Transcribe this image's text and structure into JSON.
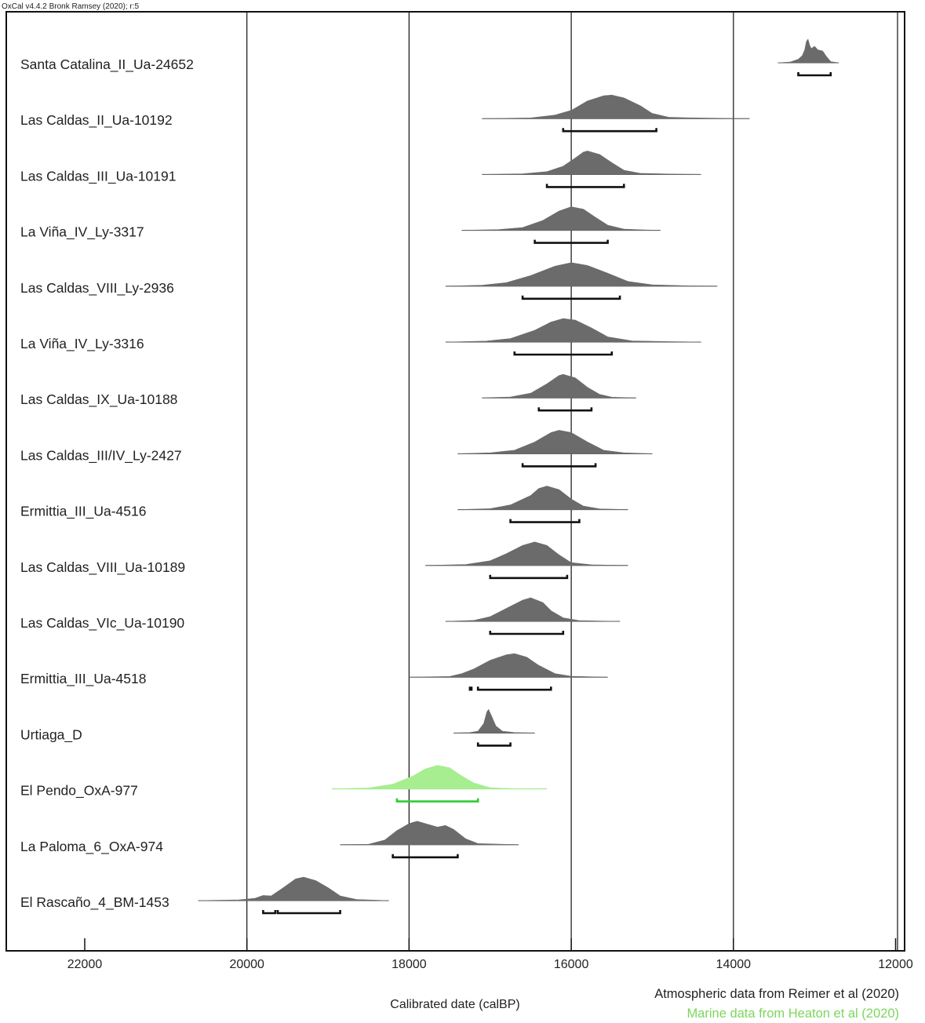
{
  "chart_data": {
    "type": "density-ridges",
    "credit": "OxCal v4.4.2 Bronk Ramsey (2020); r:5",
    "xlabel": "Calibrated date (calBP)",
    "x_direction": "descending",
    "xlim": [
      23000,
      11900
    ],
    "x_ticks": [
      22000,
      20000,
      18000,
      16000,
      14000,
      12000
    ],
    "vertical_gridlines": [
      20000,
      18000,
      16000,
      14000
    ],
    "grid": true,
    "colors": {
      "atmospheric": "#6b6b6b",
      "marine": "#a6ee8f",
      "marine_line": "#2ecc2e",
      "marine_text": "#7bd65c"
    },
    "legend_notes": [
      {
        "text": "Atmospheric data from Reimer et al (2020)",
        "curve": "atmospheric"
      },
      {
        "text": "Marine data from Heaton et al (2020)",
        "curve": "marine"
      }
    ],
    "samples": [
      {
        "label": "Santa Catalina_II_Ua-24652",
        "curve": "atmospheric",
        "range": [
          13450,
          12700
        ],
        "density": [
          [
            13450,
            0
          ],
          [
            13300,
            0.03
          ],
          [
            13200,
            0.15
          ],
          [
            13150,
            0.3
          ],
          [
            13120,
            0.55
          ],
          [
            13100,
            0.9
          ],
          [
            13080,
            1.0
          ],
          [
            13060,
            0.75
          ],
          [
            13040,
            0.6
          ],
          [
            13000,
            0.7
          ],
          [
            12960,
            0.55
          ],
          [
            12900,
            0.5
          ],
          [
            12850,
            0.25
          ],
          [
            12800,
            0.05
          ],
          [
            12700,
            0
          ]
        ],
        "intervals": [
          [
            13200,
            12800
          ]
        ]
      },
      {
        "label": "Las Caldas_II_Ua-10192",
        "curve": "atmospheric",
        "range": [
          17100,
          13800
        ],
        "density": [
          [
            17100,
            0
          ],
          [
            16500,
            0.03
          ],
          [
            16200,
            0.15
          ],
          [
            16000,
            0.35
          ],
          [
            15800,
            0.75
          ],
          [
            15600,
            0.97
          ],
          [
            15500,
            1.0
          ],
          [
            15350,
            0.88
          ],
          [
            15150,
            0.55
          ],
          [
            15000,
            0.22
          ],
          [
            14800,
            0.06
          ],
          [
            14600,
            0.04
          ],
          [
            14300,
            0.02
          ],
          [
            13800,
            0
          ]
        ],
        "intervals": [
          [
            16100,
            14950
          ]
        ]
      },
      {
        "label": "Las Caldas_III_Ua-10191",
        "curve": "atmospheric",
        "range": [
          17100,
          14400
        ],
        "density": [
          [
            17100,
            0
          ],
          [
            16600,
            0.03
          ],
          [
            16300,
            0.12
          ],
          [
            16100,
            0.35
          ],
          [
            15950,
            0.7
          ],
          [
            15850,
            0.95
          ],
          [
            15800,
            1.0
          ],
          [
            15650,
            0.85
          ],
          [
            15500,
            0.5
          ],
          [
            15350,
            0.18
          ],
          [
            15150,
            0.05
          ],
          [
            14800,
            0.02
          ],
          [
            14400,
            0
          ]
        ],
        "intervals": [
          [
            16300,
            15350
          ]
        ]
      },
      {
        "label": "La Viña_IV_Ly-3317",
        "curve": "atmospheric",
        "range": [
          17350,
          14900
        ],
        "density": [
          [
            17350,
            0
          ],
          [
            16900,
            0.03
          ],
          [
            16600,
            0.12
          ],
          [
            16350,
            0.42
          ],
          [
            16150,
            0.82
          ],
          [
            16000,
            1.0
          ],
          [
            15850,
            0.9
          ],
          [
            15700,
            0.55
          ],
          [
            15550,
            0.22
          ],
          [
            15350,
            0.05
          ],
          [
            15100,
            0.02
          ],
          [
            14900,
            0
          ]
        ],
        "intervals": [
          [
            16450,
            15550
          ]
        ]
      },
      {
        "label": "Las Caldas_VIII_Ly-2936",
        "curve": "atmospheric",
        "range": [
          17550,
          14200
        ],
        "density": [
          [
            17550,
            0
          ],
          [
            17100,
            0.04
          ],
          [
            16800,
            0.15
          ],
          [
            16500,
            0.45
          ],
          [
            16200,
            0.85
          ],
          [
            16000,
            1.0
          ],
          [
            15800,
            0.88
          ],
          [
            15550,
            0.55
          ],
          [
            15300,
            0.2
          ],
          [
            15000,
            0.06
          ],
          [
            14600,
            0.02
          ],
          [
            14200,
            0
          ]
        ],
        "intervals": [
          [
            16600,
            15400
          ]
        ]
      },
      {
        "label": "La Viña_IV_Ly-3316",
        "curve": "atmospheric",
        "range": [
          17550,
          14400
        ],
        "density": [
          [
            17550,
            0
          ],
          [
            17050,
            0.04
          ],
          [
            16750,
            0.15
          ],
          [
            16450,
            0.5
          ],
          [
            16250,
            0.85
          ],
          [
            16100,
            1.0
          ],
          [
            15950,
            0.93
          ],
          [
            15750,
            0.6
          ],
          [
            15550,
            0.22
          ],
          [
            15250,
            0.05
          ],
          [
            14800,
            0.02
          ],
          [
            14400,
            0
          ]
        ],
        "intervals": [
          [
            16700,
            15500
          ]
        ]
      },
      {
        "label": "Las Caldas_IX_Ua-10188",
        "curve": "atmospheric",
        "range": [
          17100,
          15200
        ],
        "density": [
          [
            17100,
            0
          ],
          [
            16750,
            0.04
          ],
          [
            16500,
            0.2
          ],
          [
            16300,
            0.6
          ],
          [
            16150,
            0.95
          ],
          [
            16100,
            1.0
          ],
          [
            15950,
            0.85
          ],
          [
            15800,
            0.45
          ],
          [
            15650,
            0.15
          ],
          [
            15500,
            0.03
          ],
          [
            15200,
            0
          ]
        ],
        "intervals": [
          [
            16400,
            15750
          ]
        ]
      },
      {
        "label": "Las Caldas_III/IV_Ly-2427",
        "curve": "atmospheric",
        "range": [
          17400,
          15000
        ],
        "density": [
          [
            17400,
            0
          ],
          [
            17000,
            0.04
          ],
          [
            16700,
            0.15
          ],
          [
            16450,
            0.5
          ],
          [
            16250,
            0.9
          ],
          [
            16150,
            1.0
          ],
          [
            16000,
            0.9
          ],
          [
            15800,
            0.5
          ],
          [
            15600,
            0.15
          ],
          [
            15350,
            0.04
          ],
          [
            15000,
            0
          ]
        ],
        "intervals": [
          [
            16600,
            15700
          ]
        ]
      },
      {
        "label": "Ermittia_III_Ua-4516",
        "curve": "atmospheric",
        "range": [
          17400,
          15300
        ],
        "density": [
          [
            17400,
            0
          ],
          [
            17000,
            0.04
          ],
          [
            16750,
            0.2
          ],
          [
            16500,
            0.6
          ],
          [
            16400,
            0.9
          ],
          [
            16300,
            1.0
          ],
          [
            16150,
            0.85
          ],
          [
            16000,
            0.45
          ],
          [
            15850,
            0.15
          ],
          [
            15650,
            0.03
          ],
          [
            15300,
            0
          ]
        ],
        "intervals": [
          [
            16750,
            15900
          ]
        ]
      },
      {
        "label": "Las Caldas_VIII_Ua-10189",
        "curve": "atmospheric",
        "range": [
          17800,
          15300
        ],
        "density": [
          [
            17800,
            0
          ],
          [
            17300,
            0.04
          ],
          [
            17000,
            0.2
          ],
          [
            16800,
            0.5
          ],
          [
            16600,
            0.85
          ],
          [
            16450,
            1.0
          ],
          [
            16300,
            0.85
          ],
          [
            16150,
            0.45
          ],
          [
            16000,
            0.12
          ],
          [
            15750,
            0.03
          ],
          [
            15300,
            0
          ]
        ],
        "intervals": [
          [
            17000,
            16050
          ]
        ]
      },
      {
        "label": "Las Caldas_VIc_Ua-10190",
        "curve": "atmospheric",
        "range": [
          17550,
          15400
        ],
        "density": [
          [
            17550,
            0
          ],
          [
            17200,
            0.04
          ],
          [
            17000,
            0.2
          ],
          [
            16800,
            0.55
          ],
          [
            16600,
            0.9
          ],
          [
            16500,
            1.0
          ],
          [
            16350,
            0.8
          ],
          [
            16250,
            0.45
          ],
          [
            16100,
            0.15
          ],
          [
            15900,
            0.03
          ],
          [
            15400,
            0
          ]
        ],
        "intervals": [
          [
            17000,
            16100
          ]
        ]
      },
      {
        "label": "Ermittia_III_Ua-4518",
        "curve": "atmospheric",
        "range": [
          18000,
          15550
        ],
        "density": [
          [
            18000,
            0
          ],
          [
            17500,
            0.03
          ],
          [
            17350,
            0.15
          ],
          [
            17200,
            0.35
          ],
          [
            17000,
            0.72
          ],
          [
            16800,
            0.95
          ],
          [
            16700,
            1.0
          ],
          [
            16550,
            0.85
          ],
          [
            16400,
            0.5
          ],
          [
            16200,
            0.15
          ],
          [
            16000,
            0.04
          ],
          [
            15550,
            0
          ]
        ],
        "intervals": [
          [
            17250,
            17230
          ],
          [
            17150,
            16250
          ]
        ]
      },
      {
        "label": "Urtiaga_D",
        "curve": "atmospheric",
        "range": [
          17450,
          16450
        ],
        "density": [
          [
            17450,
            0
          ],
          [
            17250,
            0.02
          ],
          [
            17150,
            0.08
          ],
          [
            17080,
            0.4
          ],
          [
            17040,
            0.9
          ],
          [
            17020,
            1.0
          ],
          [
            16980,
            0.7
          ],
          [
            16930,
            0.3
          ],
          [
            16850,
            0.08
          ],
          [
            16700,
            0.02
          ],
          [
            16450,
            0
          ]
        ],
        "intervals": [
          [
            17150,
            16750
          ]
        ]
      },
      {
        "label": "El Pendo_OxA-977",
        "curve": "marine",
        "range": [
          18950,
          16300
        ],
        "density": [
          [
            18950,
            0
          ],
          [
            18500,
            0.04
          ],
          [
            18200,
            0.2
          ],
          [
            17950,
            0.55
          ],
          [
            17800,
            0.85
          ],
          [
            17650,
            1.0
          ],
          [
            17500,
            0.9
          ],
          [
            17350,
            0.55
          ],
          [
            17200,
            0.25
          ],
          [
            17000,
            0.05
          ],
          [
            16700,
            0.01
          ],
          [
            16300,
            0
          ]
        ],
        "intervals": [
          [
            18150,
            17150
          ]
        ]
      },
      {
        "label": "La Paloma_6_OxA-974",
        "curve": "atmospheric",
        "range": [
          18850,
          16650
        ],
        "density": [
          [
            18850,
            0
          ],
          [
            18500,
            0.02
          ],
          [
            18300,
            0.2
          ],
          [
            18150,
            0.6
          ],
          [
            18000,
            0.9
          ],
          [
            17900,
            1.0
          ],
          [
            17750,
            0.85
          ],
          [
            17650,
            0.75
          ],
          [
            17550,
            0.82
          ],
          [
            17450,
            0.65
          ],
          [
            17300,
            0.25
          ],
          [
            17150,
            0.05
          ],
          [
            16650,
            0
          ]
        ],
        "intervals": [
          [
            18200,
            17400
          ]
        ]
      },
      {
        "label": "El Rascaño_4_BM-1453",
        "curve": "atmospheric",
        "range": [
          20600,
          18250
        ],
        "density": [
          [
            20600,
            0
          ],
          [
            20100,
            0.03
          ],
          [
            19900,
            0.1
          ],
          [
            19800,
            0.22
          ],
          [
            19700,
            0.2
          ],
          [
            19550,
            0.55
          ],
          [
            19400,
            0.92
          ],
          [
            19300,
            1.0
          ],
          [
            19150,
            0.85
          ],
          [
            19000,
            0.55
          ],
          [
            18850,
            0.2
          ],
          [
            18650,
            0.05
          ],
          [
            18250,
            0
          ]
        ],
        "intervals": [
          [
            19800,
            19650
          ],
          [
            19620,
            18850
          ]
        ]
      }
    ]
  }
}
